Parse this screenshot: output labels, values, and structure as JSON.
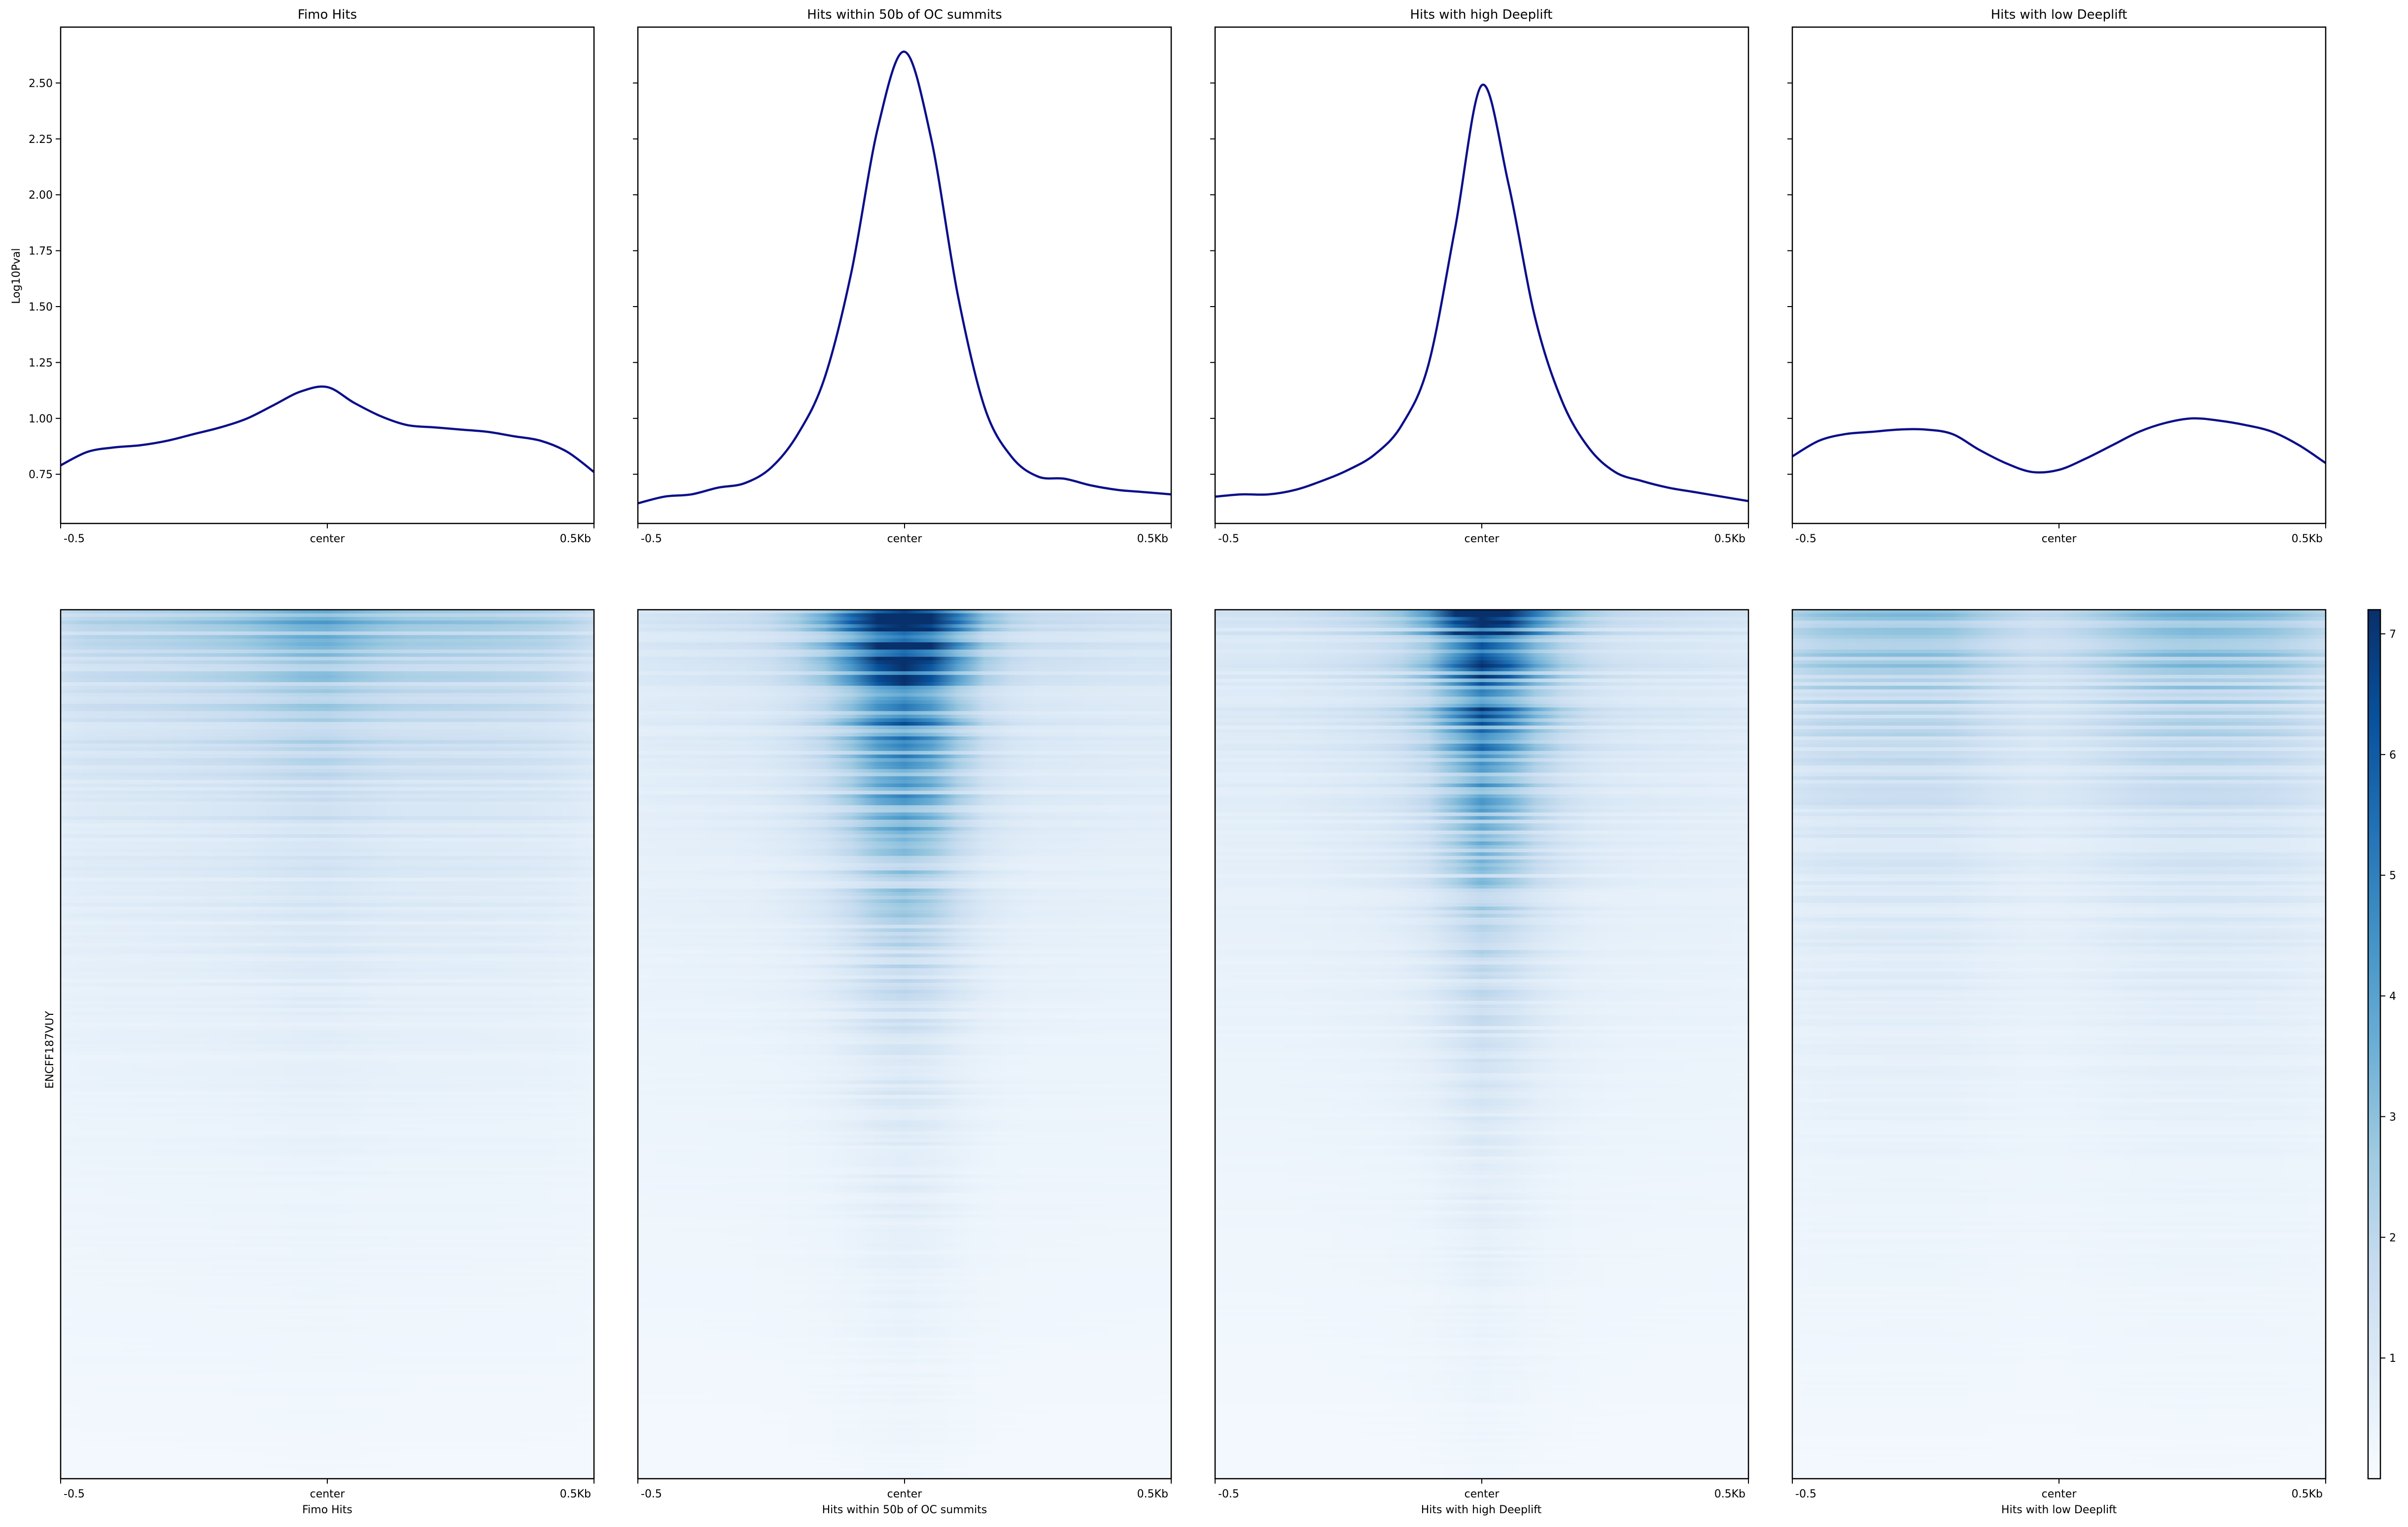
{
  "chart_data": {
    "type": "profile-heatmap",
    "profile": {
      "ylabel": "Log10Pval",
      "yticks": [
        0.75,
        1.0,
        1.25,
        1.5,
        1.75,
        2.0,
        2.25,
        2.5
      ],
      "ylim": [
        0.53,
        2.75
      ],
      "xticks": [
        "-0.5",
        "center",
        "0.5Kb"
      ],
      "line_color": "#0b0f8a",
      "x": [
        -0.5,
        -0.45,
        -0.4,
        -0.35,
        -0.3,
        -0.25,
        -0.2,
        -0.15,
        -0.1,
        -0.05,
        0.0,
        0.05,
        0.1,
        0.15,
        0.2,
        0.25,
        0.3,
        0.35,
        0.4,
        0.45,
        0.5
      ]
    },
    "panels": [
      {
        "title": "Fimo Hits",
        "xlabel": "Fimo Hits",
        "series": [
          {
            "values": [
              0.79,
              0.85,
              0.87,
              0.88,
              0.9,
              0.93,
              0.96,
              1.0,
              1.06,
              1.12,
              1.14,
              1.07,
              1.01,
              0.97,
              0.96,
              0.95,
              0.94,
              0.92,
              0.9,
              0.85,
              0.76
            ]
          }
        ]
      },
      {
        "title": "Hits within 50b of OC summits",
        "xlabel": "Hits within 50b of OC summits",
        "series": [
          {
            "values": [
              0.62,
              0.65,
              0.66,
              0.69,
              0.71,
              0.78,
              0.93,
              1.18,
              1.65,
              2.3,
              2.64,
              2.25,
              1.55,
              1.05,
              0.83,
              0.74,
              0.73,
              0.7,
              0.68,
              0.67,
              0.66
            ]
          }
        ]
      },
      {
        "title": "Hits with high Deeplift",
        "xlabel": "Hits with high Deeplift",
        "series": [
          {
            "values": [
              0.65,
              0.66,
              0.66,
              0.68,
              0.72,
              0.77,
              0.84,
              0.97,
              1.24,
              1.85,
              2.49,
              2.05,
              1.45,
              1.08,
              0.87,
              0.76,
              0.72,
              0.69,
              0.67,
              0.65,
              0.63
            ]
          }
        ]
      },
      {
        "title": "Hits with low Deeplift",
        "xlabel": "Hits with low Deeplift",
        "series": [
          {
            "values": [
              0.83,
              0.9,
              0.93,
              0.94,
              0.95,
              0.95,
              0.93,
              0.86,
              0.8,
              0.76,
              0.77,
              0.82,
              0.88,
              0.94,
              0.98,
              1.0,
              0.99,
              0.97,
              0.94,
              0.88,
              0.8
            ]
          }
        ]
      }
    ],
    "heatmap": {
      "ylabel": "ENCFF187VUY",
      "xticks": [
        "-0.5",
        "center",
        "0.5Kb"
      ],
      "colormap": "Blues",
      "colors": [
        "#f7fbff",
        "#deebf7",
        "#c6dbef",
        "#9ecae1",
        "#6baed6",
        "#4292c6",
        "#2171b5",
        "#08519c",
        "#08306b"
      ],
      "colorbar": {
        "ticks": [
          1,
          2,
          3,
          4,
          5,
          6,
          7
        ],
        "range": [
          0,
          7.2
        ]
      }
    }
  }
}
